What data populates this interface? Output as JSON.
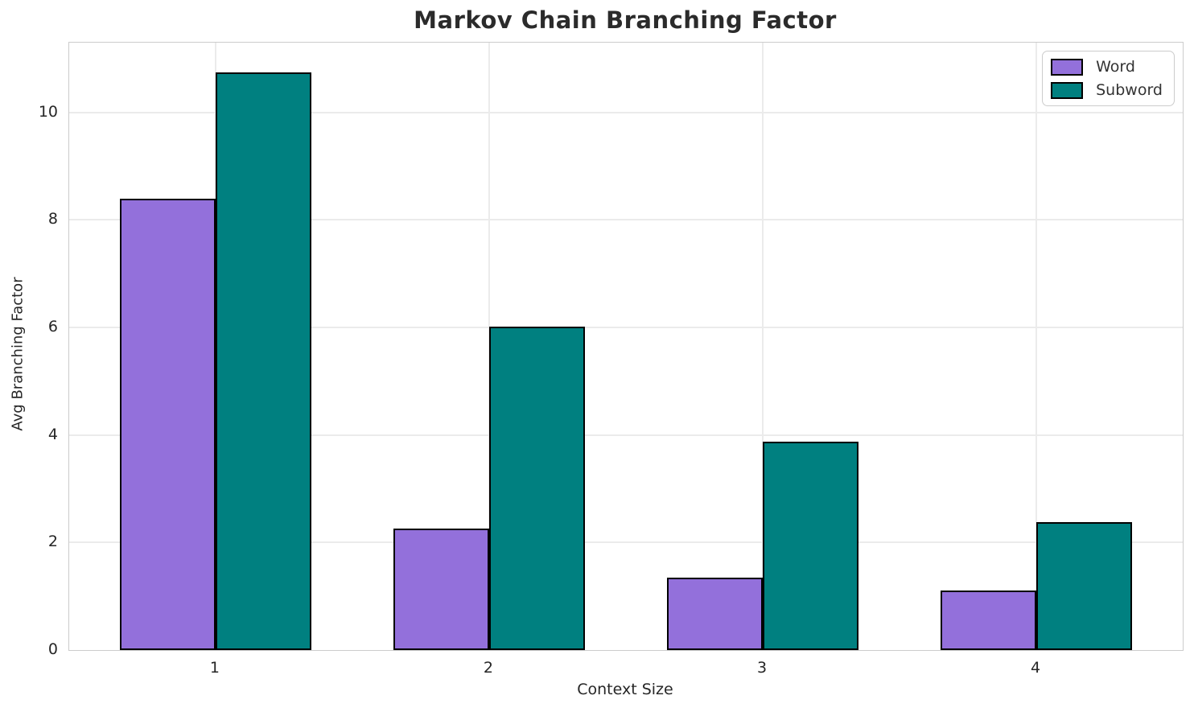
{
  "chart_data": {
    "type": "bar",
    "title": "Markov Chain Branching Factor",
    "xlabel": "Context Size",
    "ylabel": "Avg Branching Factor",
    "categories": [
      "1",
      "2",
      "3",
      "4"
    ],
    "series": [
      {
        "name": "Word",
        "color": "#9370DB",
        "values": [
          8.4,
          2.26,
          1.35,
          1.11
        ]
      },
      {
        "name": "Subword",
        "color": "#008080",
        "values": [
          10.74,
          6.01,
          3.87,
          2.38
        ]
      }
    ],
    "ylim": [
      0,
      11.3
    ],
    "yticks": [
      0,
      2,
      4,
      6,
      8,
      10
    ],
    "xlim": [
      -0.535,
      3.535
    ],
    "bar_width": 0.35,
    "bar_edge_color": "#000000",
    "grid": true,
    "legend_position": "upper right",
    "background_color": "#ffffff",
    "grid_color": "#ebebeb",
    "spine_color": "#cccccc",
    "text_color": "#262626"
  }
}
